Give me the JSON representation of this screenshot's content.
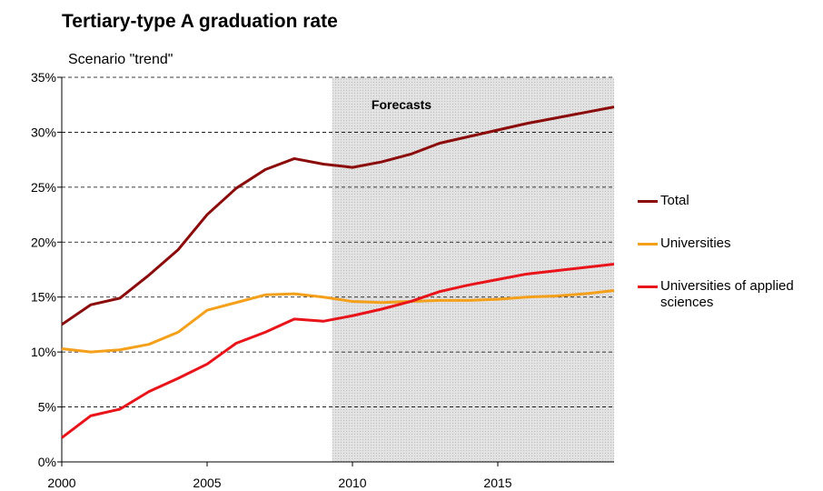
{
  "chart_data": {
    "type": "line",
    "title": "Tertiary-type A graduation rate",
    "subtitle": "Scenario \"trend\"",
    "x": [
      2000,
      2001,
      2002,
      2003,
      2004,
      2005,
      2006,
      2007,
      2008,
      2009,
      2010,
      2011,
      2012,
      2013,
      2014,
      2015,
      2016,
      2017,
      2018,
      2019
    ],
    "series": [
      {
        "name": "Total",
        "color": "#8b0a0a",
        "values": [
          12.5,
          14.3,
          14.9,
          17.0,
          19.3,
          22.5,
          24.9,
          26.6,
          27.6,
          27.1,
          26.8,
          27.3,
          28.0,
          29.0,
          29.6,
          30.2,
          30.8,
          31.3,
          31.8,
          32.3
        ]
      },
      {
        "name": "Universities",
        "color": "#f5a01a",
        "values": [
          10.3,
          10.0,
          10.2,
          10.7,
          11.8,
          13.8,
          14.5,
          15.2,
          15.3,
          15.0,
          14.6,
          14.5,
          14.6,
          14.7,
          14.7,
          14.8,
          15.0,
          15.1,
          15.3,
          15.6
        ]
      },
      {
        "name": "Universities of applied sciences",
        "color": "#e8141a",
        "values": [
          2.2,
          4.2,
          4.8,
          6.4,
          7.6,
          8.9,
          10.8,
          11.8,
          13.0,
          12.8,
          13.3,
          13.9,
          14.6,
          15.5,
          16.1,
          16.6,
          17.1,
          17.4,
          17.7,
          18.0
        ]
      }
    ],
    "shaded_region": {
      "label": "Forecasts",
      "x": [
        2009.3,
        2019
      ]
    },
    "xlim": [
      2000,
      2019
    ],
    "xticks": [
      2000,
      2005,
      2010,
      2015
    ],
    "ylim": [
      0,
      35
    ],
    "yticks": [
      {
        "value": 0,
        "label": "0%"
      },
      {
        "value": 5,
        "label": "5%"
      },
      {
        "value": 10,
        "label": "10%"
      },
      {
        "value": 15,
        "label": "15%"
      },
      {
        "value": 20,
        "label": "20%"
      },
      {
        "value": 25,
        "label": "25%"
      },
      {
        "value": 30,
        "label": "30%"
      },
      {
        "value": 35,
        "label": "35%"
      }
    ],
    "grid": true
  }
}
